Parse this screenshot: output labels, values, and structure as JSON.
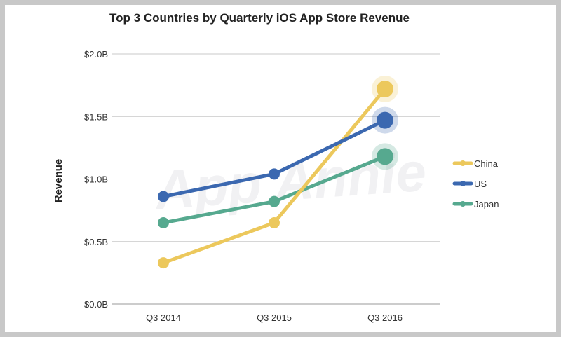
{
  "chart_data": {
    "type": "line",
    "title": "Top 3 Countries by Quarterly iOS App Store Revenue",
    "xlabel": "",
    "ylabel": "Revenue",
    "categories": [
      "Q3 2014",
      "Q3 2015",
      "Q3 2016"
    ],
    "ylim": [
      0,
      2.0
    ],
    "yticks": [
      0,
      0.5,
      1.0,
      1.5,
      2.0
    ],
    "ytick_labels": [
      "$0.0B",
      "$0.5B",
      "$1.0B",
      "$1.5B",
      "$2.0B"
    ],
    "grid": true,
    "legend_position": "right",
    "watermark": "App Annie",
    "series": [
      {
        "name": "China",
        "color": "#ecc85c",
        "values": [
          0.33,
          0.65,
          1.72
        ]
      },
      {
        "name": "US",
        "color": "#3b68b0",
        "values": [
          0.86,
          1.04,
          1.47
        ]
      },
      {
        "name": "Japan",
        "color": "#56a98f",
        "values": [
          0.65,
          0.82,
          1.18
        ]
      }
    ]
  }
}
